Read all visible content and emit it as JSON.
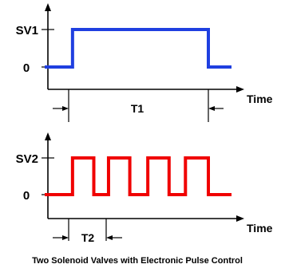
{
  "top_chart": {
    "y_level_high_label": "SV1",
    "y_level_low_label": "0",
    "x_axis_label": "Time",
    "interval_label": "T1",
    "signal_color": "#1f3fe0",
    "pulses": [
      [
        0.17,
        1.0
      ]
    ]
  },
  "bottom_chart": {
    "y_level_high_label": "SV2",
    "y_level_low_label": "0",
    "x_axis_label": "Time",
    "interval_label": "T2",
    "signal_color": "#f00000",
    "pulses": [
      [
        0.17,
        0.3
      ],
      [
        0.39,
        0.52
      ],
      [
        0.63,
        0.76
      ],
      [
        0.86,
        1.0
      ]
    ]
  },
  "caption": "Two Solenoid Valves with Electronic Pulse Control"
}
